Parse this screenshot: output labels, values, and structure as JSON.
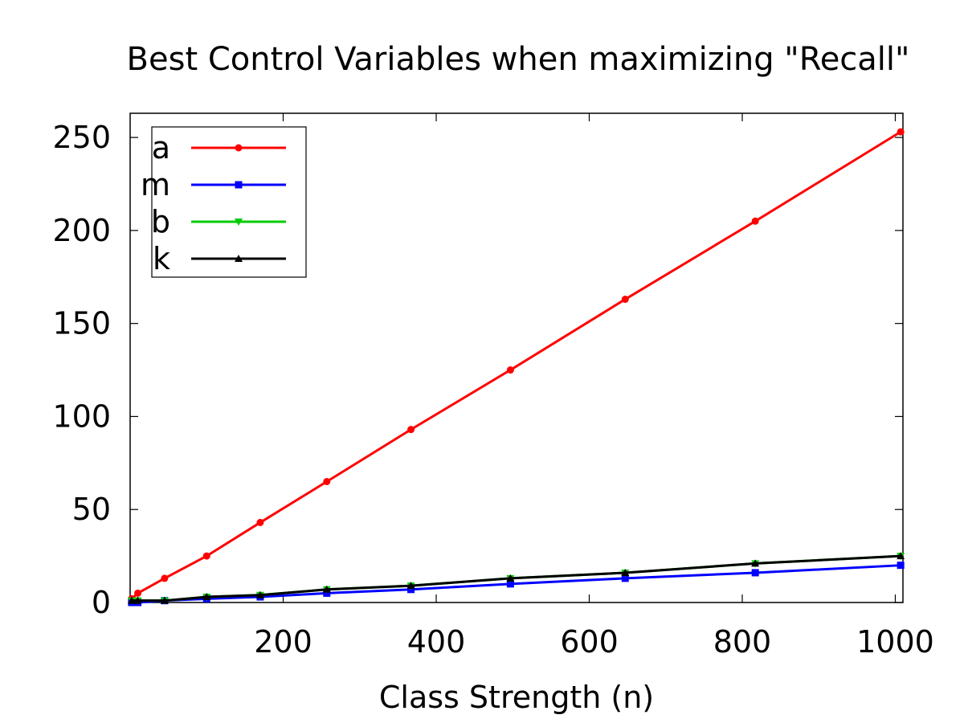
{
  "chart_data": {
    "type": "line",
    "title": "Best Control Variables when maximizing \"Recall\"",
    "xlabel": "Class Strength (n)",
    "ylabel": "",
    "xlim": [
      0,
      1010
    ],
    "ylim": [
      0,
      263
    ],
    "x_ticks": [
      200,
      400,
      600,
      800,
      1000
    ],
    "y_ticks": [
      0,
      50,
      100,
      150,
      200,
      250
    ],
    "grid": false,
    "legend_position": "top-left",
    "series": [
      {
        "name": "a",
        "color": "#ff0000",
        "marker": "circle",
        "x": [
          2,
          10,
          45,
          100,
          170,
          257,
          367,
          497,
          647,
          817,
          1007
        ],
        "y": [
          2,
          5,
          13,
          25,
          43,
          65,
          93,
          125,
          163,
          205,
          253
        ]
      },
      {
        "name": "m",
        "color": "#0000ff",
        "marker": "square",
        "x": [
          2,
          10,
          45,
          100,
          170,
          257,
          367,
          497,
          647,
          817,
          1007
        ],
        "y": [
          0,
          0,
          1,
          2,
          3,
          5,
          7,
          10,
          13,
          16,
          20
        ]
      },
      {
        "name": "b",
        "color": "#00cc00",
        "marker": "triangle-down",
        "x": [
          2,
          10,
          45,
          100,
          170,
          257,
          367,
          497,
          647,
          817,
          1007
        ],
        "y": [
          1,
          1,
          1,
          3,
          4,
          7,
          9,
          13,
          16,
          21,
          25
        ]
      },
      {
        "name": "k",
        "color": "#000000",
        "marker": "triangle-up",
        "x": [
          2,
          10,
          45,
          100,
          170,
          257,
          367,
          497,
          647,
          817,
          1007
        ],
        "y": [
          1,
          1,
          1,
          3,
          4,
          7,
          9,
          13,
          16,
          21,
          25
        ]
      }
    ]
  }
}
